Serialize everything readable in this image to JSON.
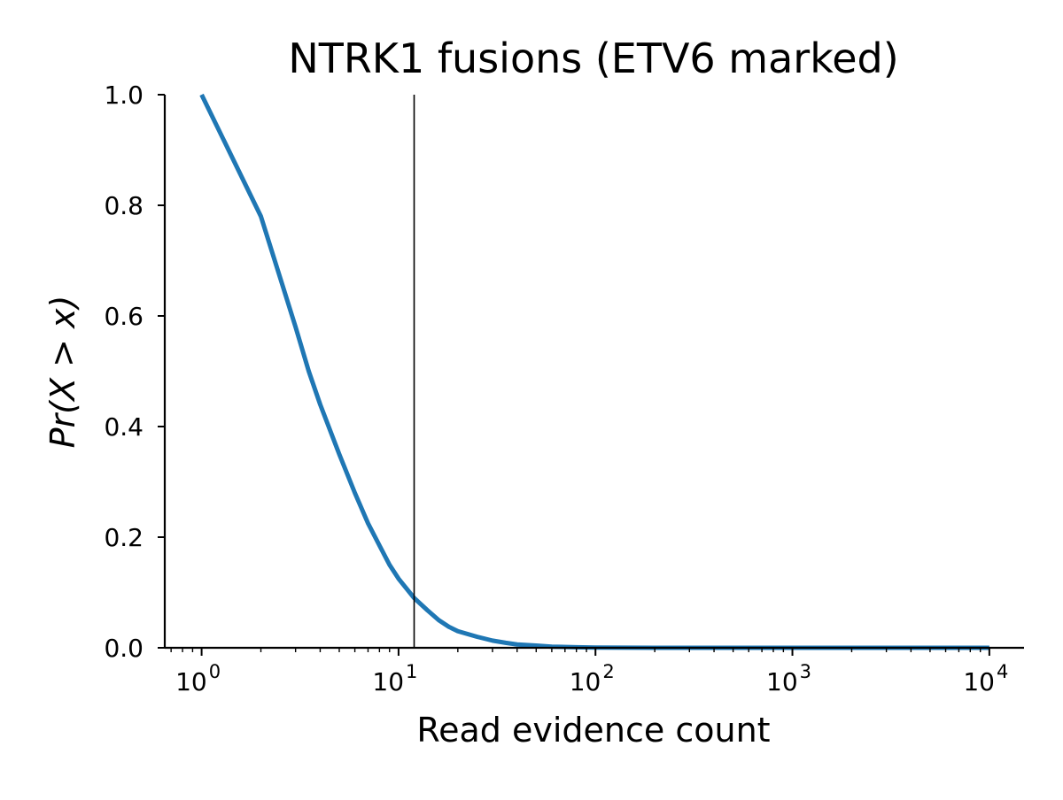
{
  "chart_data": {
    "type": "line",
    "title": "NTRK1 fusions (ETV6 marked)",
    "xlabel": "Read evidence count",
    "ylabel": "Pr(X > x)",
    "x_scale": "log",
    "xlim": [
      0.65,
      15000
    ],
    "ylim": [
      0.0,
      1.0
    ],
    "grid": false,
    "x_ticks": [
      {
        "value": 1,
        "base": "10",
        "exp": "0"
      },
      {
        "value": 10,
        "base": "10",
        "exp": "1"
      },
      {
        "value": 100,
        "base": "10",
        "exp": "2"
      },
      {
        "value": 1000,
        "base": "10",
        "exp": "3"
      },
      {
        "value": 10000,
        "base": "10",
        "exp": "4"
      }
    ],
    "y_ticks": [
      "0.0",
      "0.2",
      "0.4",
      "0.6",
      "0.8",
      "1.0"
    ],
    "series": [
      {
        "color": "#1f77b4",
        "x": [
          1,
          2,
          2.5,
          3,
          3.5,
          4,
          5,
          6,
          7,
          8,
          9,
          10,
          12,
          14,
          16,
          18,
          20,
          25,
          30,
          35,
          40,
          50,
          60,
          80,
          100,
          200,
          500,
          1000,
          2000,
          5000,
          10000
        ],
        "y": [
          1.0,
          0.78,
          0.67,
          0.58,
          0.5,
          0.44,
          0.35,
          0.28,
          0.225,
          0.185,
          0.15,
          0.125,
          0.09,
          0.068,
          0.05,
          0.038,
          0.03,
          0.02,
          0.013,
          0.009,
          0.006,
          0.004,
          0.002,
          0.001,
          0.0005,
          0,
          0,
          0,
          0,
          0,
          0
        ]
      }
    ],
    "markers": [
      {
        "type": "vline",
        "x": 12,
        "color": "#000000"
      }
    ]
  }
}
